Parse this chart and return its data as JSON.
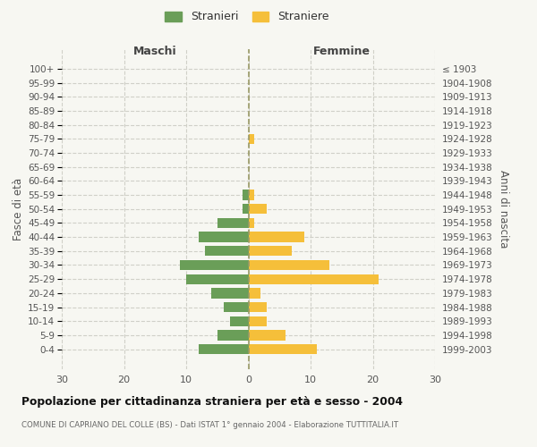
{
  "age_groups": [
    "100+",
    "95-99",
    "90-94",
    "85-89",
    "80-84",
    "75-79",
    "70-74",
    "65-69",
    "60-64",
    "55-59",
    "50-54",
    "45-49",
    "40-44",
    "35-39",
    "30-34",
    "25-29",
    "20-24",
    "15-19",
    "10-14",
    "5-9",
    "0-4"
  ],
  "birth_years": [
    "≤ 1903",
    "1904-1908",
    "1909-1913",
    "1914-1918",
    "1919-1923",
    "1924-1928",
    "1929-1933",
    "1934-1938",
    "1939-1943",
    "1944-1948",
    "1949-1953",
    "1954-1958",
    "1959-1963",
    "1964-1968",
    "1969-1973",
    "1974-1978",
    "1979-1983",
    "1984-1988",
    "1989-1993",
    "1994-1998",
    "1999-2003"
  ],
  "males": [
    0,
    0,
    0,
    0,
    0,
    0,
    0,
    0,
    0,
    1,
    1,
    5,
    8,
    7,
    11,
    10,
    6,
    4,
    3,
    5,
    8
  ],
  "females": [
    0,
    0,
    0,
    0,
    0,
    1,
    0,
    0,
    0,
    1,
    3,
    1,
    9,
    7,
    13,
    21,
    2,
    3,
    3,
    6,
    11
  ],
  "male_color": "#6a9e58",
  "female_color": "#f5bf3a",
  "background_color": "#f7f7f2",
  "grid_color": "#d0d0c8",
  "centerline_color": "#999966",
  "title": "Popolazione per cittadinanza straniera per età e sesso - 2004",
  "subtitle": "COMUNE DI CAPRIANO DEL COLLE (BS) - Dati ISTAT 1° gennaio 2004 - Elaborazione TUTTITALIA.IT",
  "header_left": "Maschi",
  "header_right": "Femmine",
  "ylabel_left": "Fasce di età",
  "ylabel_right": "Anni di nascita",
  "legend_male": "Stranieri",
  "legend_female": "Straniere",
  "xlim": 30,
  "text_color": "#555555",
  "title_color": "#111111"
}
